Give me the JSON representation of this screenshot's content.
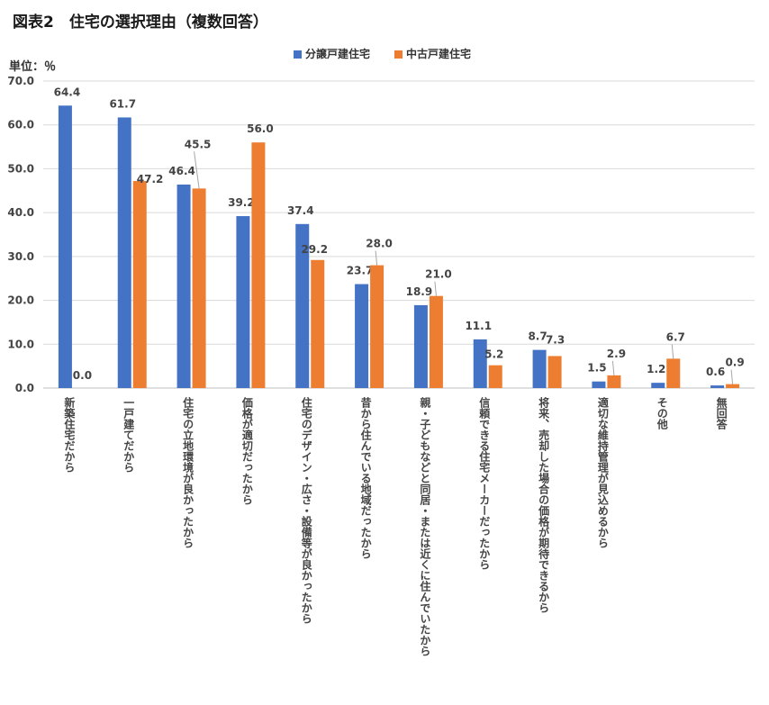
{
  "chart_data": {
    "type": "bar",
    "title": "図表2　住宅の選択理由（複数回答）",
    "unit": "単位：％",
    "ylim": [
      0,
      70
    ],
    "yticks": [
      "0.0",
      "10.0",
      "20.0",
      "30.0",
      "40.0",
      "50.0",
      "60.0",
      "70.0"
    ],
    "grid": true,
    "legend_position": "top",
    "categories": [
      "新築住宅だから",
      "一戸建てだから",
      "住宅の立地環境が良かったから",
      "価格が適切だったから",
      "住宅のデザイン・広さ・設備等が良かったから",
      "昔から住んでいる地域だったから",
      "親・子どもなどと同居・または近くに住んでいたから",
      "信頼できる住宅メーカーだったから",
      "将来、売却した場合の価格が期待できるから",
      "適切な維持管理が見込めるから",
      "その他",
      "無回答"
    ],
    "series": [
      {
        "name": "分譲戸建住宅",
        "color": "#4472C4",
        "values": [
          64.4,
          61.7,
          46.4,
          39.2,
          37.4,
          23.7,
          18.9,
          11.1,
          8.7,
          1.5,
          1.2,
          0.6
        ],
        "labels": [
          "64.4",
          "61.7",
          "46.4",
          "39.2",
          "37.4",
          "23.7",
          "18.9",
          "11.1",
          "8.7",
          "1.5",
          "1.2",
          "0.6"
        ]
      },
      {
        "name": "中古戸建住宅",
        "color": "#ED7D31",
        "values": [
          0.0,
          47.2,
          45.5,
          56.0,
          29.2,
          28.0,
          21.0,
          5.2,
          7.3,
          2.9,
          6.7,
          0.9
        ],
        "labels": [
          "0.0",
          "47.2",
          "45.5",
          "56.0",
          "29.2",
          "28.0",
          "21.0",
          "5.2",
          "7.3",
          "2.9",
          "6.7",
          "0.9"
        ]
      }
    ]
  }
}
